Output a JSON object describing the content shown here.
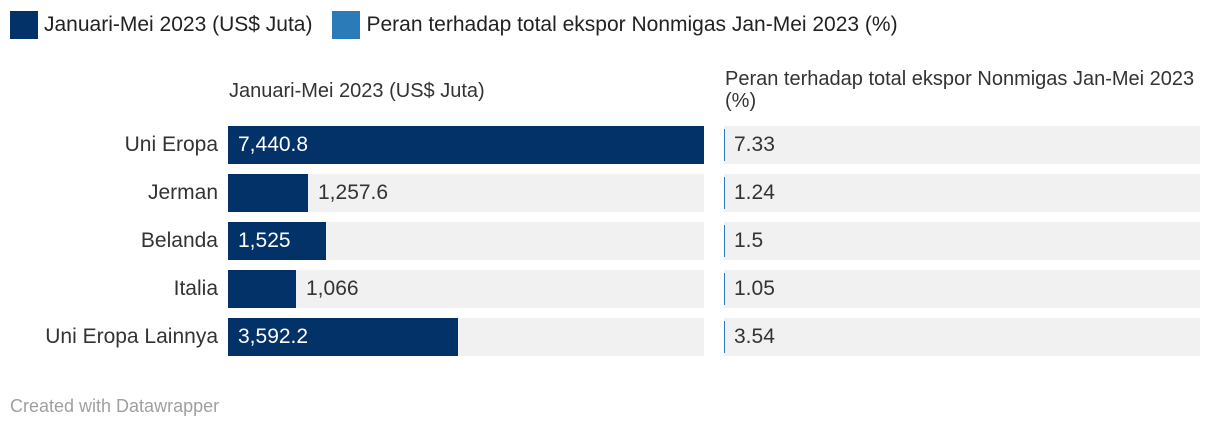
{
  "legend": [
    {
      "label": "Januari-Mei 2023 (US$ Juta)",
      "color": "#033269"
    },
    {
      "label": "Peran terhadap total ekspor Nonmigas Jan-Mei 2023 (%)",
      "color": "#2a7bb8"
    }
  ],
  "chart_data": {
    "type": "bar",
    "orientation": "horizontal",
    "categories": [
      "Uni Eropa",
      "Jerman",
      "Belanda",
      "Italia",
      "Uni Eropa Lainnya"
    ],
    "series": [
      {
        "name": "Januari-Mei 2023 (US$ Juta)",
        "values": [
          7440.8,
          1257.6,
          1525,
          1066,
          3592.2
        ],
        "labels": [
          "7,440.8",
          "1,257.6",
          "1,525",
          "1,066",
          "3,592.2"
        ],
        "color": "#033269",
        "xlim": [
          0,
          7440.8
        ]
      },
      {
        "name": "Peran terhadap total ekspor Nonmigas Jan-Mei 2023 (%)",
        "values": [
          7.33,
          1.24,
          1.5,
          1.05,
          3.54
        ],
        "labels": [
          "7.33",
          "1.24",
          "1.5",
          "1.05",
          "3.54"
        ],
        "color": "#2a7bb8",
        "xlim": [
          0,
          100
        ]
      }
    ],
    "column_headers": [
      "Januari-Mei 2023 (US$ Juta)",
      "Peran terhadap total ekspor Nonmigas Jan-Mei 2023 (%)"
    ]
  },
  "footer": "Created with Datawrapper"
}
